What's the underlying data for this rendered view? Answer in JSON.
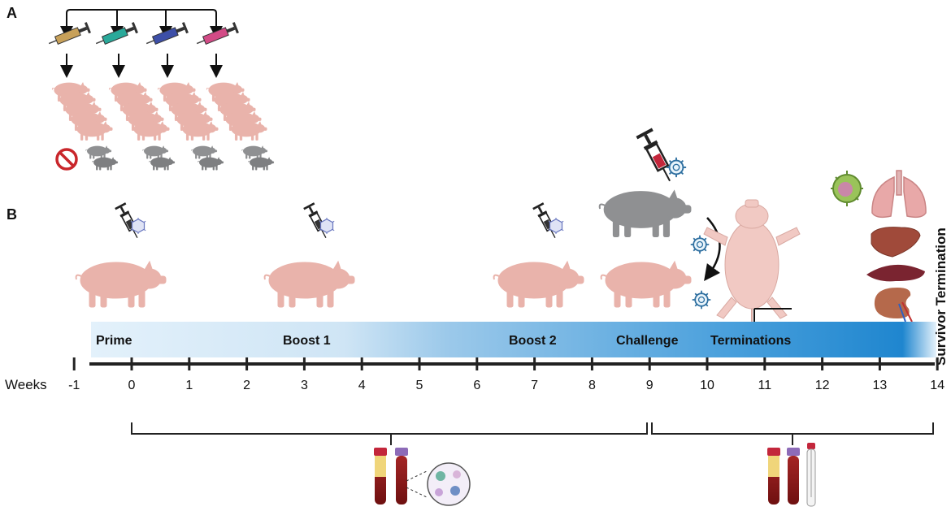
{
  "panel_a": {
    "letter": "A"
  },
  "panel_b": {
    "letter": "B"
  },
  "syringe_colors": [
    "#c8a15a",
    "#2aa99a",
    "#3d4fa8",
    "#d24b86"
  ],
  "colors": {
    "pig_pink": "#e9b3ab",
    "pig_grey": "#8f9092",
    "band_light": "#dcecf8",
    "band_dark": "#1f86cf",
    "no_symbol": "#c9262b",
    "blood": "#8b1a1a",
    "serum": "#f0d57a",
    "cap_red": "#c3263b",
    "cap_purple": "#8d6bb8",
    "virus": "#2e6fa0",
    "liver": "#a04a3a",
    "spleen": "#7a2430",
    "lung": "#e8a8a8"
  },
  "timeline": {
    "axis_label": "Weeks",
    "ticks": [
      "-1",
      "0",
      "1",
      "2",
      "3",
      "4",
      "5",
      "6",
      "7",
      "8",
      "9",
      "10",
      "11",
      "12",
      "13",
      "14"
    ],
    "tick_values": [
      -1,
      0,
      1,
      2,
      3,
      4,
      5,
      6,
      7,
      8,
      9,
      10,
      11,
      12,
      13,
      14
    ],
    "phases": {
      "prime": "Prime",
      "boost1": "Boost 1",
      "boost2": "Boost 2",
      "challenge": "Challenge",
      "terminations": "Terminations"
    },
    "end_label": "Survivor Termination"
  },
  "icons": {
    "syringe": "syringe-icon",
    "pig": "pig-icon",
    "virus": "virus-icon",
    "no": "no-symbol-icon",
    "blood_tube": "blood-tube-icon",
    "cells": "cells-magnified-icon",
    "swab": "swab-tube-icon",
    "lung": "lung-icon",
    "liver": "liver-icon",
    "spleen": "spleen-icon",
    "kidney": "kidney-icon",
    "lymph_node": "lymph-node-icon"
  }
}
